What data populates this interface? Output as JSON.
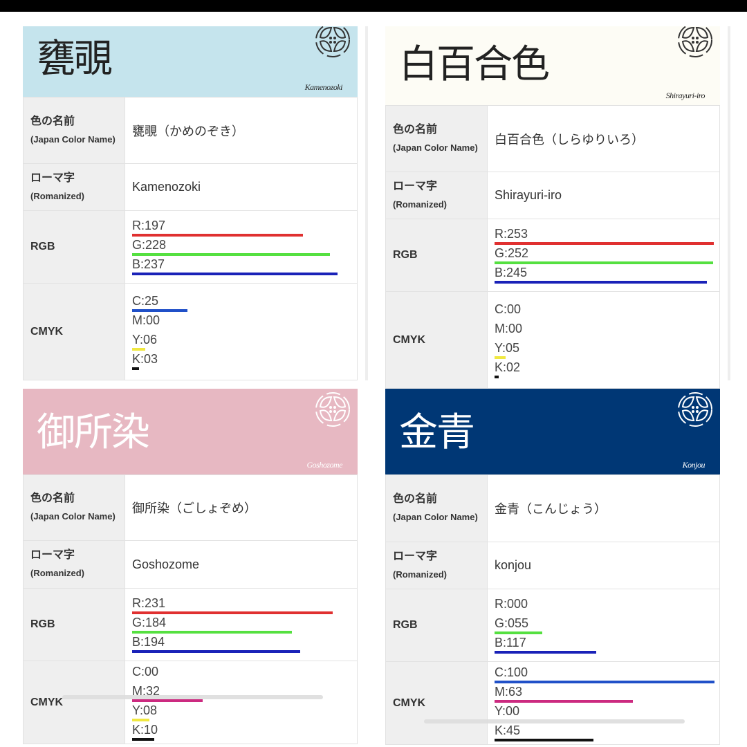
{
  "labels": {
    "name": "色の名前",
    "name_en": "(Japan Color Name)",
    "roman": "ローマ字",
    "roman_en": "(Romanized)",
    "rgb": "RGB",
    "cmyk": "CMYK"
  },
  "panels": [
    {
      "title": "甕覗",
      "roman_title": "Kamenozoki",
      "name": "甕覗（かめのぞき）",
      "romanized": "Kamenozoki",
      "bg": "#c5e4ed",
      "fg": "#222222",
      "rgb": [
        {
          "t": "R:197",
          "v": 197
        },
        {
          "t": "G:228",
          "v": 228
        },
        {
          "t": "B:237",
          "v": 237
        }
      ],
      "cmyk": [
        {
          "t": "C:25",
          "v": 25
        },
        {
          "t": "M:00",
          "v": 0
        },
        {
          "t": "Y:06",
          "v": 6
        },
        {
          "t": "K:03",
          "v": 3
        }
      ]
    },
    {
      "title": "白百合色",
      "roman_title": "Shirayuri-iro",
      "name": "白百合色（しらゆりいろ）",
      "romanized": "Shirayuri-iro",
      "bg": "#fdfcf5",
      "fg": "#222222",
      "rgb": [
        {
          "t": "R:253",
          "v": 253
        },
        {
          "t": "G:252",
          "v": 252
        },
        {
          "t": "B:245",
          "v": 245
        }
      ],
      "cmyk": [
        {
          "t": "C:00",
          "v": 0
        },
        {
          "t": "M:00",
          "v": 0
        },
        {
          "t": "Y:05",
          "v": 5
        },
        {
          "t": "K:02",
          "v": 2
        }
      ]
    },
    {
      "title": "御所染",
      "roman_title": "Goshozome",
      "name": "御所染（ごしょぞめ）",
      "romanized": "Goshozome",
      "bg": "#e7b8c2",
      "fg": "#ffffff",
      "rgb": [
        {
          "t": "R:231",
          "v": 231
        },
        {
          "t": "G:184",
          "v": 184
        },
        {
          "t": "B:194",
          "v": 194
        }
      ],
      "cmyk": [
        {
          "t": "C:00",
          "v": 0
        },
        {
          "t": "M:32",
          "v": 32
        },
        {
          "t": "Y:08",
          "v": 8
        },
        {
          "t": "K:10",
          "v": 10
        }
      ]
    },
    {
      "title": "金青",
      "roman_title": "Konjou",
      "name": "金青（こんじょう）",
      "romanized": "konjou",
      "bg": "#003775",
      "fg": "#ffffff",
      "rgb": [
        {
          "t": "R:000",
          "v": 0
        },
        {
          "t": "G:055",
          "v": 55
        },
        {
          "t": "B:117",
          "v": 117
        }
      ],
      "cmyk": [
        {
          "t": "C:100",
          "v": 100
        },
        {
          "t": "M:63",
          "v": 63
        },
        {
          "t": "Y:00",
          "v": 0
        },
        {
          "t": "K:45",
          "v": 45
        }
      ]
    }
  ],
  "colors": {
    "r": "#e03030",
    "g": "#55e040",
    "b": "#1a22b8",
    "c": "#2050c8",
    "m": "#cc2a80",
    "y": "#f0e840",
    "k": "#111111"
  }
}
